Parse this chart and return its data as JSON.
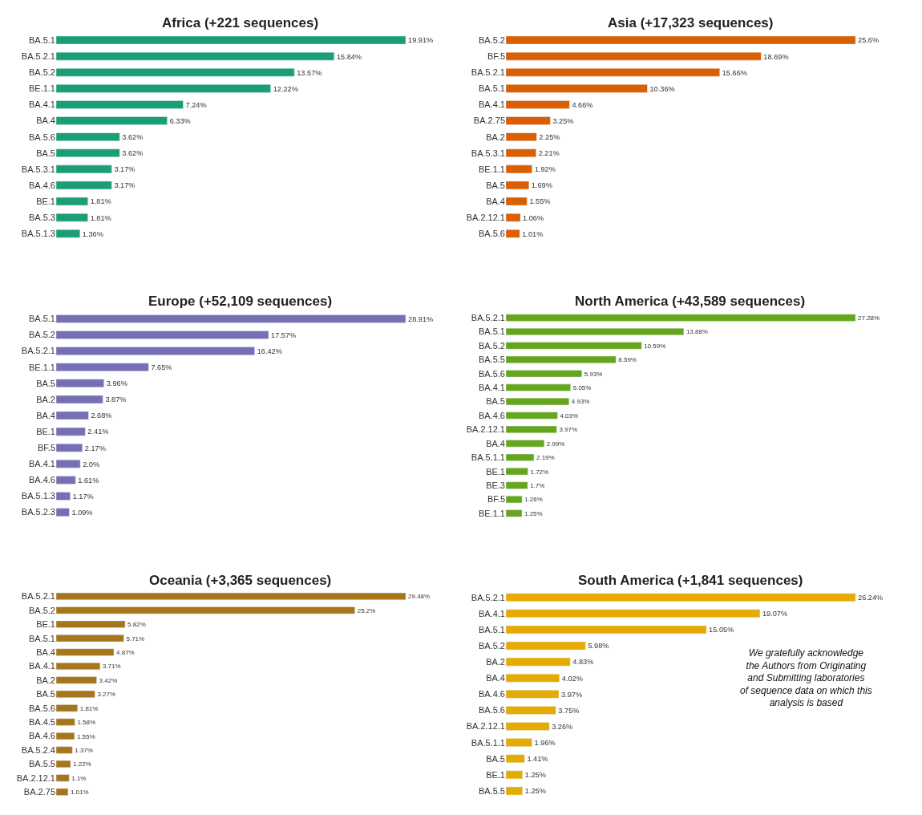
{
  "chart_data": [
    {
      "type": "bar",
      "orientation": "horizontal",
      "title": "Africa (+221 sequences)",
      "color": "#1b9e77",
      "tick_labels": "y",
      "categories": [
        "BA.5.1",
        "BA.5.2.1",
        "BA.5.2",
        "BE.1.1",
        "BA.4.1",
        "BA.4",
        "BA.5.6",
        "BA.5",
        "BA.5.3.1",
        "BA.4.6",
        "BE.1",
        "BA.5.3",
        "BA.5.1.3"
      ],
      "values": [
        19.91,
        15.84,
        13.57,
        12.22,
        7.24,
        6.33,
        3.62,
        3.62,
        3.17,
        3.17,
        1.81,
        1.81,
        1.36
      ],
      "value_labels": [
        "19.91%",
        "15.84%",
        "13.57%",
        "12.22%",
        "7.24%",
        "6.33%",
        "3.62%",
        "3.62%",
        "3.17%",
        "3.17%",
        "1.81%",
        "1.81%",
        "1.36%"
      ]
    },
    {
      "type": "bar",
      "orientation": "horizontal",
      "title": "Asia (+17,323 sequences)",
      "color": "#d95f02",
      "tick_labels": "y",
      "categories": [
        "BA.5.2",
        "BF.5",
        "BA.5.2.1",
        "BA.5.1",
        "BA.4.1",
        "BA.2.75",
        "BA.2",
        "BA.5.3.1",
        "BE.1.1",
        "BA.5",
        "BA.4",
        "BA.2.12.1",
        "BA.5.6"
      ],
      "values": [
        25.6,
        18.69,
        15.66,
        10.36,
        4.66,
        3.25,
        2.25,
        2.21,
        1.92,
        1.69,
        1.55,
        1.06,
        1.01
      ],
      "value_labels": [
        "25.6%",
        "18.69%",
        "15.66%",
        "10.36%",
        "4.66%",
        "3.25%",
        "2.25%",
        "2.21%",
        "1.92%",
        "1.69%",
        "1.55%",
        "1.06%",
        "1.01%"
      ]
    },
    {
      "type": "bar",
      "orientation": "horizontal",
      "title": "Europe (+52,109 sequences)",
      "color": "#7570b3",
      "tick_labels": "y",
      "categories": [
        "BA.5.1",
        "BA.5.2",
        "BA.5.2.1",
        "BE.1.1",
        "BA.5",
        "BA.2",
        "BA.4",
        "BE.1",
        "BF.5",
        "BA.4.1",
        "BA.4.6",
        "BA.5.1.3",
        "BA.5.2.3"
      ],
      "values": [
        28.91,
        17.57,
        16.42,
        7.65,
        3.96,
        3.87,
        2.68,
        2.41,
        2.17,
        2.0,
        1.61,
        1.17,
        1.09
      ],
      "value_labels": [
        "28.91%",
        "17.57%",
        "16.42%",
        "7.65%",
        "3.96%",
        "3.87%",
        "2.68%",
        "2.41%",
        "2.17%",
        "2.0%",
        "1.61%",
        "1.17%",
        "1.09%"
      ]
    },
    {
      "type": "bar",
      "orientation": "horizontal",
      "title": "North America (+43,589 sequences)",
      "color": "#66a61e",
      "tick_labels": "y",
      "categories": [
        "BA.5.2.1",
        "BA.5.1",
        "BA.5.2",
        "BA.5.5",
        "BA.5.6",
        "BA.4.1",
        "BA.5",
        "BA.4.6",
        "BA.2.12.1",
        "BA.4",
        "BA.5.1.1",
        "BE.1",
        "BE.3",
        "BF.5",
        "BE.1.1"
      ],
      "values": [
        27.28,
        13.88,
        10.59,
        8.59,
        5.93,
        5.05,
        4.93,
        4.03,
        3.97,
        2.99,
        2.19,
        1.72,
        1.7,
        1.26,
        1.25
      ],
      "value_labels": [
        "27.28%",
        "13.88%",
        "10.59%",
        "8.59%",
        "5.93%",
        "5.05%",
        "4.93%",
        "4.03%",
        "3.97%",
        "2.99%",
        "2.19%",
        "1.72%",
        "1.7%",
        "1.26%",
        "1.25%"
      ]
    },
    {
      "type": "bar",
      "orientation": "horizontal",
      "title": "Oceania (+3,365 sequences)",
      "color": "#a6761d",
      "tick_labels": "y",
      "categories": [
        "BA.5.2.1",
        "BA.5.2",
        "BE.1",
        "BA.5.1",
        "BA.4",
        "BA.4.1",
        "BA.2",
        "BA.5",
        "BA.5.6",
        "BA.4.5",
        "BA.4.6",
        "BA.5.2.4",
        "BA.5.5",
        "BA.2.12.1",
        "BA.2.75"
      ],
      "values": [
        29.48,
        25.2,
        5.82,
        5.71,
        4.87,
        3.71,
        3.42,
        3.27,
        1.81,
        1.58,
        1.55,
        1.37,
        1.22,
        1.1,
        1.01
      ],
      "value_labels": [
        "29.48%",
        "25.2%",
        "5.82%",
        "5.71%",
        "4.87%",
        "3.71%",
        "3.42%",
        "3.27%",
        "1.81%",
        "1.58%",
        "1.55%",
        "1.37%",
        "1.22%",
        "1.1%",
        "1.01%"
      ]
    },
    {
      "type": "bar",
      "orientation": "horizontal",
      "title": "South America (+1,841 sequences)",
      "color": "#e6ab02",
      "tick_labels": "y",
      "categories": [
        "BA.5.2.1",
        "BA.4.1",
        "BA.5.1",
        "BA.5.2",
        "BA.2",
        "BA.4",
        "BA.4.6",
        "BA.5.6",
        "BA.2.12.1",
        "BA.5.1.1",
        "BA.5",
        "BE.1",
        "BA.5.5"
      ],
      "values": [
        26.24,
        19.07,
        15.05,
        5.98,
        4.83,
        4.02,
        3.97,
        3.75,
        3.26,
        1.96,
        1.41,
        1.25,
        1.25
      ],
      "value_labels": [
        "26.24%",
        "19.07%",
        "15.05%",
        "5.98%",
        "4.83%",
        "4.02%",
        "3.97%",
        "3.75%",
        "3.26%",
        "1.96%",
        "1.41%",
        "1.25%",
        "1.25%"
      ],
      "annotations": [
        "We gratefully acknowledge\nthe Authors from Originating\nand Submitting laboratories\nof sequence data on which this\nanalysis is based"
      ]
    }
  ]
}
